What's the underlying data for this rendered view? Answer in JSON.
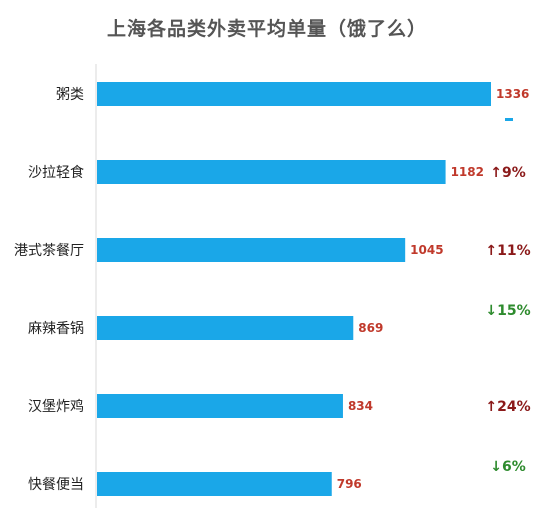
{
  "chart_data": {
    "type": "bar",
    "orientation": "horizontal",
    "title": "上海各品类外卖平均单量（饿了么）",
    "categories": [
      "粥类",
      "沙拉轻食",
      "港式茶餐厅",
      "麻辣香锅",
      "汉堡炸鸡",
      "快餐便当"
    ],
    "values": [
      1336,
      1182,
      1045,
      869,
      834,
      796
    ],
    "changes": [
      {
        "text": "-",
        "direction": "flat"
      },
      {
        "text": "↑9%",
        "direction": "up"
      },
      {
        "text": "↑11%",
        "direction": "up"
      },
      {
        "text": "↓15%",
        "direction": "down"
      },
      {
        "text": "↑24%",
        "direction": "up"
      },
      {
        "text": "↓6%",
        "direction": "down"
      }
    ],
    "xlim": [
      0,
      1336
    ],
    "grid": false,
    "legend": "none",
    "colors": {
      "bar": "#1aa7e8",
      "value_label": "#c0392b",
      "up": "#8b1a1a",
      "down": "#2e8b2e",
      "flat": "#1aa7e8",
      "axis": "#d9d9d9",
      "title": "#555555"
    }
  }
}
